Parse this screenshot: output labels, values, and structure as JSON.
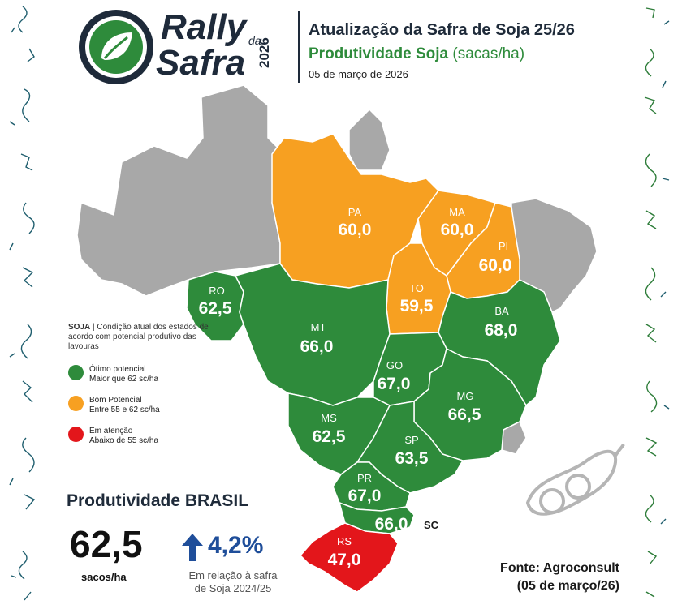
{
  "header": {
    "logo_line1": "Rally",
    "logo_da": "da",
    "logo_line2": "Safra",
    "logo_year": "2026",
    "title": "Atualização da Safra de Soja 25/26",
    "subtitle": "Produtividade Soja",
    "subtitle_unit": "(sacas/ha)",
    "date": "05 de março de 2026"
  },
  "colors": {
    "green": "#2e8b3b",
    "orange": "#f7a021",
    "red": "#e3161b",
    "gray": "#a8a8a8",
    "blue": "#1f4e9a"
  },
  "states": [
    {
      "abbr": "PA",
      "value": "60,0",
      "category": "orange"
    },
    {
      "abbr": "MA",
      "value": "60,0",
      "category": "orange"
    },
    {
      "abbr": "PI",
      "value": "60,0",
      "category": "orange"
    },
    {
      "abbr": "TO",
      "value": "59,5",
      "category": "orange"
    },
    {
      "abbr": "RO",
      "value": "62,5",
      "category": "green"
    },
    {
      "abbr": "MT",
      "value": "66,0",
      "category": "green"
    },
    {
      "abbr": "BA",
      "value": "68,0",
      "category": "green"
    },
    {
      "abbr": "GO",
      "value": "67,0",
      "category": "green"
    },
    {
      "abbr": "MG",
      "value": "66,5",
      "category": "green"
    },
    {
      "abbr": "MS",
      "value": "62,5",
      "category": "green"
    },
    {
      "abbr": "SP",
      "value": "63,5",
      "category": "green"
    },
    {
      "abbr": "PR",
      "value": "67,0",
      "category": "green"
    },
    {
      "abbr": "SC",
      "value": "66,0",
      "category": "green"
    },
    {
      "abbr": "RS",
      "value": "47,0",
      "category": "red"
    }
  ],
  "legend": {
    "title_bold": "SOJA",
    "title_rest": " | Condição atual dos estados de acordo com potencial produtivo das lavouras",
    "items": [
      {
        "label": "Ótimo potencial",
        "desc": "Maior que 62 sc/ha",
        "color": "#2e8b3b"
      },
      {
        "label": "Bom Potencial",
        "desc": "Entre 55 e 62 sc/ha",
        "color": "#f7a021"
      },
      {
        "label": "Em atenção",
        "desc": "Abaixo de 55 sc/ha",
        "color": "#e3161b"
      }
    ]
  },
  "brasil": {
    "title": "Produtividade BRASIL",
    "value": "62,5",
    "unit": "sacos/ha",
    "change": "4,2%",
    "change_note_1": "Em relação à safra",
    "change_note_2": "de Soja 2024/25"
  },
  "source": {
    "line1": "Fonte: Agroconsult",
    "line2": "(05 de março/26)"
  }
}
